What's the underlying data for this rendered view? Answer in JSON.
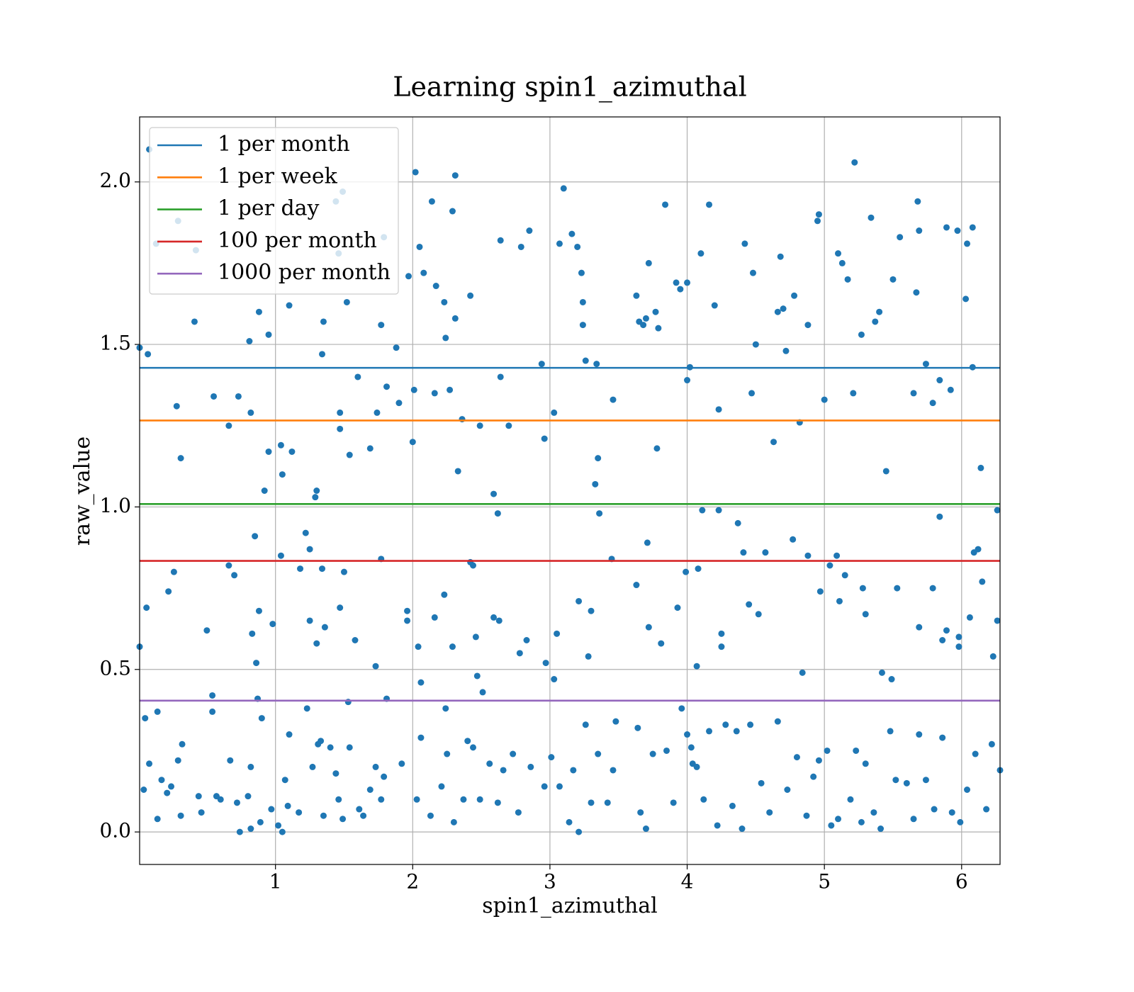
{
  "chart_data": {
    "type": "scatter",
    "title": "Learning spin1_azimuthal",
    "xlabel": "spin1_azimuthal",
    "ylabel": "raw_value",
    "color": "#1f77b4",
    "grid": true,
    "legend": "upper left",
    "xlim": [
      0.01,
      6.28
    ],
    "ylim": [
      -0.1,
      2.2
    ],
    "xticks": [
      1,
      2,
      3,
      4,
      5,
      6
    ],
    "yticks": [
      {
        "value": 0,
        "label": "0.0"
      },
      0.5,
      {
        "value": 1,
        "label": "1.0"
      },
      1.5,
      {
        "value": 2,
        "label": "2.0"
      }
    ],
    "hlines": [
      {
        "name": "1 per month",
        "color": "#1f77b4",
        "value": 1.428
      },
      {
        "name": "1 per week",
        "color": "#ff7f0e",
        "value": 1.266
      },
      {
        "name": "1 per day",
        "color": "#2ca02c",
        "value": 1.009
      },
      {
        "name": "100 per month",
        "color": "#d62728",
        "value": 0.834
      },
      {
        "name": "1000 per month",
        "color": "#9467bd",
        "value": 0.404
      }
    ],
    "x": [
      0.01,
      0.07,
      0.08,
      0.13,
      0.42,
      0.29,
      0.41,
      0.28,
      0.31,
      0.55,
      0.66,
      0.73,
      0.81,
      0.82,
      0.88,
      0.95,
      0.92,
      0.95,
      1.04,
      1.05,
      1.1,
      1.12,
      1.29,
      1.3,
      1.34,
      1.35,
      1.44,
      1.49,
      1.46,
      1.52,
      1.47,
      1.47,
      1.54,
      1.6,
      1.69,
      1.74,
      1.77,
      1.79,
      1.81,
      1.88,
      1.9,
      1.97,
      2.02,
      2.05,
      2.08,
      2.14,
      2.17,
      2.23,
      2.24,
      2.29,
      2.31,
      2.31,
      2.33,
      2.42,
      2.01,
      2.0,
      2.16,
      2.27,
      2.36,
      2.49,
      2.59,
      2.64,
      2.64,
      2.7,
      2.79,
      2.85,
      2.94,
      2.96,
      3.03,
      3.07,
      3.1,
      3.16,
      3.2,
      3.23,
      3.24,
      3.24,
      3.26,
      3.34,
      3.35,
      3.33,
      3.46,
      3.63,
      3.65,
      3.68,
      3.7,
      3.72,
      3.77,
      3.79,
      3.78,
      3.84,
      3.92,
      3.95,
      4.0,
      4.0,
      4.02,
      4.1,
      4.16,
      4.2,
      4.23,
      4.42,
      4.47,
      4.48,
      4.5,
      4.63,
      4.66,
      4.68,
      4.7,
      4.72,
      4.78,
      4.82,
      4.88,
      4.95,
      4.96,
      5.0,
      5.1,
      5.13,
      5.17,
      5.21,
      5.22,
      5.27,
      5.34,
      5.37,
      5.4,
      5.45,
      5.5,
      5.55,
      5.65,
      5.67,
      5.68,
      5.69,
      5.74,
      5.79,
      5.84,
      5.89,
      5.92,
      5.97,
      6.03,
      6.04,
      6.08,
      6.08,
      6.14,
      6.26,
      0.01,
      0.06,
      0.05,
      0.08,
      0.04,
      0.14,
      0.22,
      0.26,
      0.29,
      0.32,
      0.31,
      0.14,
      0.5,
      0.54,
      0.54,
      0.57,
      0.66,
      0.7,
      0.67,
      0.74,
      0.83,
      0.85,
      0.86,
      0.88,
      0.87,
      0.9,
      0.98,
      1.04,
      1.1,
      1.07,
      1.05,
      1.18,
      1.22,
      1.25,
      1.25,
      1.3,
      1.34,
      1.36,
      1.23,
      1.31,
      1.47,
      1.5,
      1.58,
      1.53,
      1.73,
      1.77,
      1.81,
      1.92,
      1.96,
      1.96,
      2.04,
      2.06,
      2.06,
      2.16,
      2.23,
      2.24,
      2.29,
      2.42,
      2.44,
      2.46,
      2.47,
      2.51,
      2.59,
      2.62,
      2.63,
      2.78,
      2.83,
      2.97,
      3.03,
      3.05,
      3.21,
      3.28,
      3.3,
      3.36,
      3.45,
      3.63,
      3.71,
      3.72,
      3.81,
      3.93,
      3.99,
      4.07,
      4.08,
      4.11,
      4.23,
      4.25,
      4.25,
      4.37,
      4.41,
      4.45,
      4.52,
      4.57,
      4.77,
      4.84,
      4.88,
      4.97,
      5.04,
      5.09,
      5.11,
      5.15,
      5.28,
      5.3,
      5.42,
      5.49,
      5.53,
      5.69,
      5.79,
      5.84,
      5.86,
      5.89,
      5.98,
      5.98,
      6.06,
      6.09,
      6.12,
      6.15,
      6.23,
      6.26,
      0.21,
      0.24,
      0.17,
      0.44,
      0.46,
      0.6,
      0.72,
      0.8,
      0.82,
      0.82,
      0.89,
      0.97,
      1.02,
      1.09,
      1.17,
      1.27,
      1.33,
      1.35,
      1.4,
      1.44,
      1.46,
      1.49,
      1.54,
      1.61,
      1.64,
      1.69,
      1.73,
      1.77,
      1.79,
      2.03,
      2.13,
      2.21,
      2.25,
      2.3,
      2.37,
      2.4,
      2.44,
      2.49,
      2.56,
      2.62,
      2.66,
      2.73,
      2.77,
      2.86,
      2.96,
      3.01,
      3.07,
      3.14,
      3.17,
      3.21,
      3.26,
      3.3,
      3.35,
      3.42,
      3.46,
      3.48,
      3.64,
      3.66,
      3.7,
      3.75,
      3.85,
      3.9,
      3.96,
      4.0,
      4.03,
      4.04,
      4.07,
      4.12,
      4.16,
      4.22,
      4.28,
      4.33,
      4.36,
      4.4,
      4.46,
      4.54,
      4.6,
      4.66,
      4.73,
      4.8,
      4.87,
      4.92,
      4.96,
      5.02,
      5.05,
      5.1,
      5.19,
      5.23,
      5.27,
      5.3,
      5.36,
      5.41,
      5.48,
      5.52,
      5.6,
      5.65,
      5.69,
      5.74,
      5.8,
      5.86,
      5.93,
      5.99,
      6.04,
      6.1,
      6.18,
      6.22,
      6.28
    ],
    "values": [
      1.49,
      1.47,
      2.1,
      1.81,
      1.79,
      1.88,
      1.57,
      1.31,
      1.15,
      1.34,
      1.25,
      1.34,
      1.51,
      1.29,
      1.6,
      1.53,
      1.05,
      1.17,
      1.19,
      1.1,
      1.62,
      1.17,
      1.03,
      1.05,
      1.47,
      1.57,
      1.94,
      1.97,
      1.78,
      1.63,
      1.29,
      1.24,
      1.16,
      1.4,
      1.18,
      1.29,
      1.56,
      1.83,
      1.37,
      1.49,
      1.32,
      1.71,
      2.03,
      1.8,
      1.72,
      1.94,
      1.68,
      1.63,
      1.52,
      1.91,
      2.02,
      1.58,
      1.11,
      1.65,
      1.36,
      1.2,
      1.35,
      1.36,
      1.27,
      1.25,
      1.04,
      1.82,
      1.4,
      1.25,
      1.8,
      1.85,
      1.44,
      1.21,
      1.29,
      1.81,
      1.98,
      1.84,
      1.8,
      1.72,
      1.63,
      1.56,
      1.45,
      1.44,
      1.15,
      1.07,
      1.33,
      1.65,
      1.57,
      1.56,
      1.58,
      1.75,
      1.6,
      1.55,
      1.18,
      1.93,
      1.69,
      1.67,
      1.69,
      1.39,
      1.43,
      1.78,
      1.93,
      1.62,
      1.3,
      1.81,
      1.35,
      1.72,
      1.5,
      1.2,
      1.6,
      1.77,
      1.61,
      1.48,
      1.65,
      1.26,
      1.56,
      1.88,
      1.9,
      1.33,
      1.78,
      1.75,
      1.7,
      1.35,
      2.06,
      1.53,
      1.89,
      1.57,
      1.6,
      1.11,
      1.7,
      1.83,
      1.35,
      1.66,
      1.94,
      1.85,
      1.44,
      1.32,
      1.39,
      1.86,
      1.36,
      1.85,
      1.64,
      1.81,
      1.86,
      1.43,
      1.12,
      0.99,
      0.57,
      0.69,
      0.35,
      0.21,
      0.13,
      0.37,
      0.74,
      0.8,
      0.22,
      0.27,
      0.05,
      0.04,
      0.62,
      0.42,
      0.37,
      0.11,
      0.82,
      0.79,
      0.22,
      0,
      0.61,
      0.91,
      0.52,
      0.68,
      0.41,
      0.35,
      0.64,
      0.85,
      0.3,
      0.16,
      0,
      0.81,
      0.92,
      0.87,
      0.65,
      0.58,
      0.81,
      0.63,
      0.38,
      0.27,
      0.69,
      0.8,
      0.59,
      0.4,
      0.51,
      0.84,
      0.41,
      0.21,
      0.68,
      0.65,
      0.57,
      0.46,
      0.29,
      0.66,
      0.73,
      0.38,
      0.57,
      0.83,
      0.82,
      0.6,
      0.48,
      0.43,
      0.66,
      0.98,
      0.65,
      0.55,
      0.59,
      0.52,
      0.47,
      0.61,
      0.71,
      0.54,
      0.68,
      0.98,
      0.84,
      0.76,
      0.89,
      0.63,
      0.58,
      0.69,
      0.8,
      0.51,
      0.81,
      0.99,
      0.99,
      0.61,
      0.57,
      0.95,
      0.86,
      0.7,
      0.67,
      0.86,
      0.9,
      0.49,
      0.85,
      0.74,
      0.82,
      0.85,
      0.71,
      0.79,
      0.75,
      0.67,
      0.49,
      0.47,
      0.75,
      0.63,
      0.75,
      0.97,
      0.59,
      0.62,
      0.6,
      0.57,
      0.66,
      0.86,
      0.87,
      0.77,
      0.54,
      0.65,
      0.12,
      0.14,
      0.16,
      0.11,
      0.06,
      0.1,
      0.09,
      0.11,
      0.2,
      0.01,
      0.03,
      0.07,
      0.02,
      0.08,
      0.06,
      0.2,
      0.28,
      0.05,
      0.26,
      0.18,
      0.1,
      0.04,
      0.26,
      0.07,
      0.05,
      0.13,
      0.2,
      0.1,
      0.17,
      0.1,
      0.05,
      0.14,
      0.24,
      0.03,
      0.1,
      0.28,
      0.26,
      0.1,
      0.21,
      0.09,
      0.19,
      0.24,
      0.06,
      0.2,
      0.14,
      0.23,
      0.14,
      0.03,
      0.19,
      0,
      0.33,
      0.09,
      0.24,
      0.09,
      0.19,
      0.34,
      0.32,
      0.06,
      0.01,
      0.24,
      0.25,
      0.09,
      0.38,
      0.3,
      0.26,
      0.21,
      0.2,
      0.1,
      0.31,
      0.02,
      0.33,
      0.08,
      0.31,
      0.01,
      0.33,
      0.15,
      0.06,
      0.34,
      0.13,
      0.23,
      0.05,
      0.17,
      0.22,
      0.25,
      0.02,
      0.04,
      0.1,
      0.25,
      0.03,
      0.21,
      0.06,
      0.01,
      0.31,
      0.16,
      0.15,
      0.04,
      0.3,
      0.16,
      0.07,
      0.29,
      0.06,
      0.03,
      0.13,
      0.24,
      0.07,
      0.27,
      0.19
    ]
  }
}
